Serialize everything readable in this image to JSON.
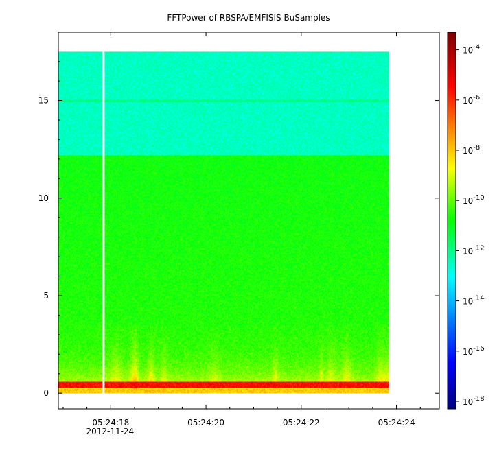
{
  "chart_data": {
    "type": "heatmap",
    "title": "FFTPower of RBSPA/EMFISIS  BuSamples",
    "xlabel": "",
    "ylabel": "",
    "x_axis": {
      "ticks": [
        {
          "label": "05:24:18",
          "sublabel": "2012-11-24",
          "t": 18
        },
        {
          "label": "05:24:20",
          "t": 20
        },
        {
          "label": "05:24:22",
          "t": 22
        },
        {
          "label": "05:24:24",
          "t": 24
        }
      ],
      "range_seconds": [
        16.9,
        24.9
      ],
      "data_extent_seconds": [
        16.9,
        23.85
      ],
      "gap_seconds": 17.85
    },
    "y_axis": {
      "ticks": [
        0,
        5,
        10,
        15
      ],
      "range": [
        -0.8,
        18.5
      ],
      "data_extent": [
        0,
        17.5
      ]
    },
    "colorbar": {
      "scale": "log",
      "ticks": [
        {
          "base": "10",
          "exp": "-4",
          "value": -4
        },
        {
          "base": "10",
          "exp": "-6",
          "value": -6
        },
        {
          "base": "10",
          "exp": "-8",
          "value": -8
        },
        {
          "base": "10",
          "exp": "-10",
          "value": -10
        },
        {
          "base": "10",
          "exp": "-12",
          "value": -12
        },
        {
          "base": "10",
          "exp": "-14",
          "value": -14
        },
        {
          "base": "10",
          "exp": "-16",
          "value": -16
        },
        {
          "base": "10",
          "exp": "-18",
          "value": -18
        }
      ],
      "range_log10": [
        -18.3,
        -3.3
      ]
    },
    "features": {
      "background_power_log10": -10.5,
      "upper_band_power_log10": -12.5,
      "upper_band_start": 12.2,
      "line_frequency": 15.0,
      "low_band_power_log10": -5.5,
      "low_band_frequency": [
        0.3,
        0.6
      ]
    },
    "grid": false
  }
}
